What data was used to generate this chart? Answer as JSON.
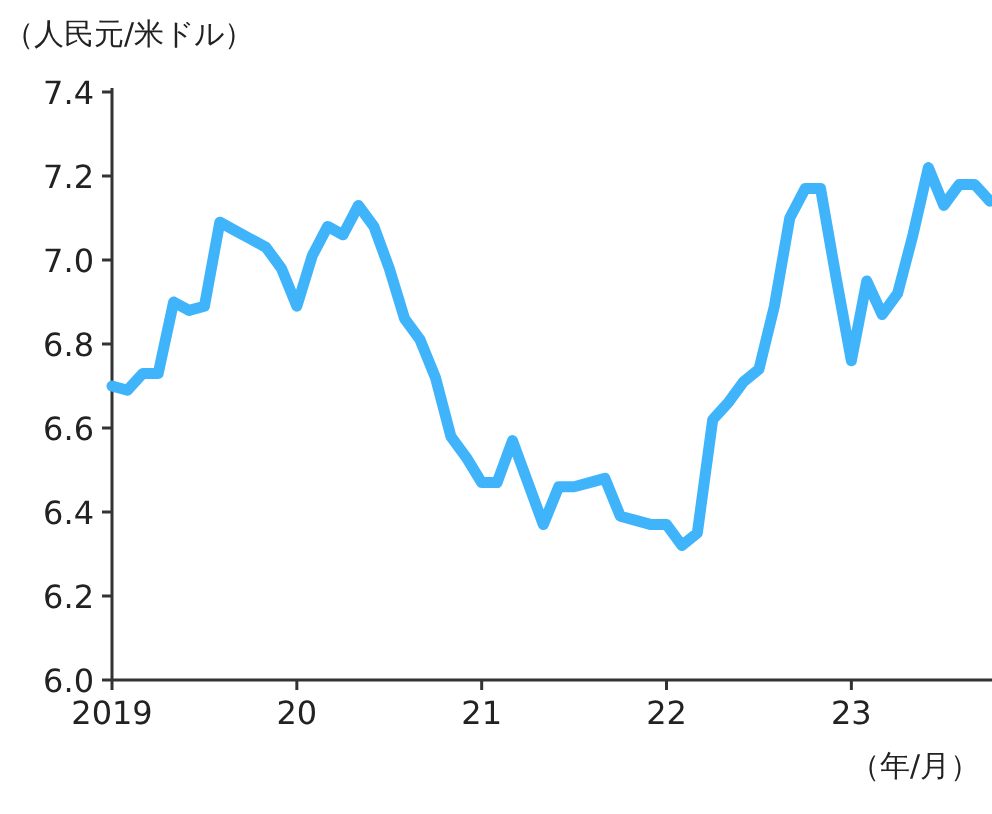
{
  "chart_data": {
    "type": "line",
    "ylabel": "（人民元/米ドル）",
    "xlabel": "（年/月）",
    "x": [
      "2019-01",
      "2019-02",
      "2019-03",
      "2019-04",
      "2019-05",
      "2019-06",
      "2019-07",
      "2019-08",
      "2019-09",
      "2019-10",
      "2019-11",
      "2019-12",
      "2020-01",
      "2020-02",
      "2020-03",
      "2020-04",
      "2020-05",
      "2020-06",
      "2020-07",
      "2020-08",
      "2020-09",
      "2020-10",
      "2020-11",
      "2020-12",
      "2021-01",
      "2021-02",
      "2021-03",
      "2021-04",
      "2021-05",
      "2021-06",
      "2021-07",
      "2021-08",
      "2021-09",
      "2021-10",
      "2021-11",
      "2021-12",
      "2022-01",
      "2022-02",
      "2022-03",
      "2022-04",
      "2022-05",
      "2022-06",
      "2022-07",
      "2022-08",
      "2022-09",
      "2022-10",
      "2022-11",
      "2022-12",
      "2023-01",
      "2023-02",
      "2023-03",
      "2023-04",
      "2023-05",
      "2023-06",
      "2023-07",
      "2023-08",
      "2023-09",
      "2023-10"
    ],
    "series": [
      {
        "color": "#3fb4fb",
        "values": [
          6.7,
          6.69,
          6.73,
          6.73,
          6.9,
          6.88,
          6.89,
          7.09,
          7.07,
          7.05,
          7.03,
          6.98,
          6.89,
          7.01,
          7.08,
          7.06,
          7.13,
          7.08,
          6.98,
          6.86,
          6.81,
          6.72,
          6.58,
          6.53,
          6.47,
          6.47,
          6.57,
          6.47,
          6.37,
          6.46,
          6.46,
          6.47,
          6.48,
          6.39,
          6.38,
          6.37,
          6.37,
          6.32,
          6.35,
          6.62,
          6.66,
          6.71,
          6.74,
          6.89,
          7.1,
          7.17,
          7.17,
          6.96,
          6.76,
          6.95,
          6.87,
          6.92,
          7.06,
          7.22,
          7.13,
          7.18,
          7.18,
          7.14
        ]
      }
    ],
    "xlim": [
      "2019-01",
      "2023-10"
    ],
    "xticks": [
      {
        "value": "2019-01",
        "label": "2019"
      },
      {
        "value": "2020-01",
        "label": "20"
      },
      {
        "value": "2021-01",
        "label": "21"
      },
      {
        "value": "2022-01",
        "label": "22"
      },
      {
        "value": "2023-01",
        "label": "23"
      }
    ],
    "ylim": [
      6.0,
      7.4
    ],
    "yticks": [
      {
        "value": 6.0,
        "label": "6.0"
      },
      6.2,
      6.4,
      6.6,
      6.8,
      {
        "value": 7.0,
        "label": "7.0"
      },
      7.2,
      7.4
    ],
    "grid": false,
    "marker": "none",
    "line_style": "solid"
  }
}
